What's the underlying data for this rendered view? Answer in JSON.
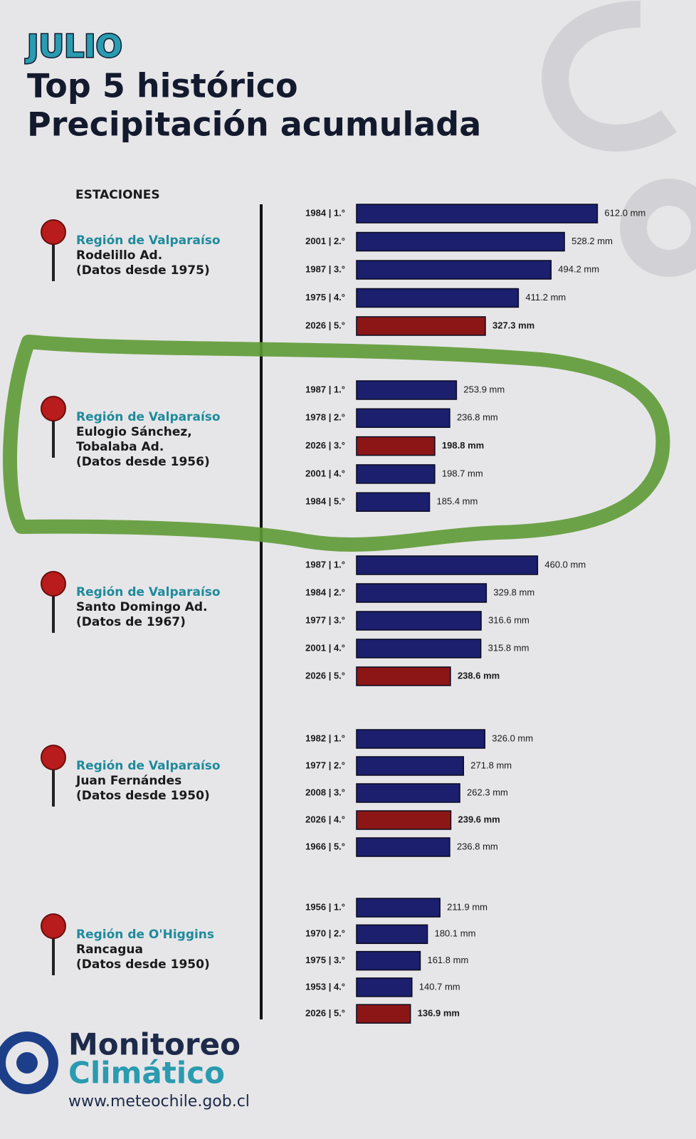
{
  "header": {
    "month": "JULIO",
    "title": "Top 5 histórico",
    "subtitle": "Precipitación acumulada",
    "stations_label": "ESTACIONES"
  },
  "chart_data": [
    {
      "type": "bar",
      "orientation": "horizontal",
      "region": "Región de Valparaíso",
      "station": [
        "Rodelillo Ad.",
        "(Datos desde 1975)"
      ],
      "categories": [
        "1984 | 1.°",
        "2001 | 2.°",
        "1987 | 3.°",
        "1975 | 4.°",
        "2026 | 5.°"
      ],
      "values": [
        612.0,
        528.2,
        494.2,
        411.2,
        327.3
      ],
      "value_labels": [
        "612.0 mm",
        "528.2 mm",
        "494.2 mm",
        "411.2 mm",
        "327.3 mm"
      ],
      "colors": [
        "#1b1f6e",
        "#1b1f6e",
        "#1b1f6e",
        "#1b1f6e",
        "#8c1616"
      ]
    },
    {
      "type": "bar",
      "orientation": "horizontal",
      "region": "Región de Valparaíso",
      "station": [
        "Eulogio Sánchez,",
        "Tobalaba Ad.",
        "(Datos desde 1956)"
      ],
      "categories": [
        "1987 | 1.°",
        "1978 | 2.°",
        "2026 | 3.°",
        "2001 | 4.°",
        "1984 | 5.°"
      ],
      "values": [
        253.9,
        236.8,
        198.8,
        198.7,
        185.4
      ],
      "value_labels": [
        "253.9 mm",
        "236.8 mm",
        "198.8 mm",
        "198.7 mm",
        "185.4 mm"
      ],
      "colors": [
        "#1b1f6e",
        "#1b1f6e",
        "#8c1616",
        "#1b1f6e",
        "#1b1f6e"
      ]
    },
    {
      "type": "bar",
      "orientation": "horizontal",
      "region": "Región de Valparaíso",
      "station": [
        "Santo Domingo Ad.",
        "(Datos de 1967)"
      ],
      "categories": [
        "1987 | 1.°",
        "1984 | 2.°",
        "1977 | 3.°",
        "2001 | 4.°",
        "2026 | 5.°"
      ],
      "values": [
        460.0,
        329.8,
        316.6,
        315.8,
        238.6
      ],
      "value_labels": [
        "460.0 mm",
        "329.8 mm",
        "316.6 mm",
        "315.8 mm",
        "238.6 mm"
      ],
      "colors": [
        "#1b1f6e",
        "#1b1f6e",
        "#1b1f6e",
        "#1b1f6e",
        "#8c1616"
      ]
    },
    {
      "type": "bar",
      "orientation": "horizontal",
      "region": "Región de Valparaíso",
      "station": [
        "Juan Fernándes",
        "(Datos desde 1950)"
      ],
      "categories": [
        "1982 | 1.°",
        "1977 | 2.°",
        "2008 | 3.°",
        "2026 | 4.°",
        "1966 | 5.°"
      ],
      "values": [
        326.0,
        271.8,
        262.3,
        239.6,
        236.8
      ],
      "value_labels": [
        "326.0 mm",
        "271.8 mm",
        "262.3 mm",
        "239.6 mm",
        "236.8 mm"
      ],
      "colors": [
        "#1b1f6e",
        "#1b1f6e",
        "#1b1f6e",
        "#8c1616",
        "#1b1f6e"
      ]
    },
    {
      "type": "bar",
      "orientation": "horizontal",
      "region": "Región de O'Higgins",
      "station": [
        "Rancagua",
        "(Datos desde 1950)"
      ],
      "categories": [
        "1956 | 1.°",
        "1970 | 2.°",
        "1975 | 3.°",
        "1953 | 4.°",
        "2026 | 5.°"
      ],
      "values": [
        211.9,
        180.1,
        161.8,
        140.7,
        136.9
      ],
      "value_labels": [
        "211.9 mm",
        "180.1 mm",
        "161.8 mm",
        "140.7 mm",
        "136.9 mm"
      ],
      "colors": [
        "#1b1f6e",
        "#1b1f6e",
        "#1b1f6e",
        "#1b1f6e",
        "#8c1616"
      ]
    }
  ],
  "footer": {
    "brand_1": "Monitoreo",
    "brand_2": "Climático",
    "url": "www.meteochile.gob.cl"
  }
}
